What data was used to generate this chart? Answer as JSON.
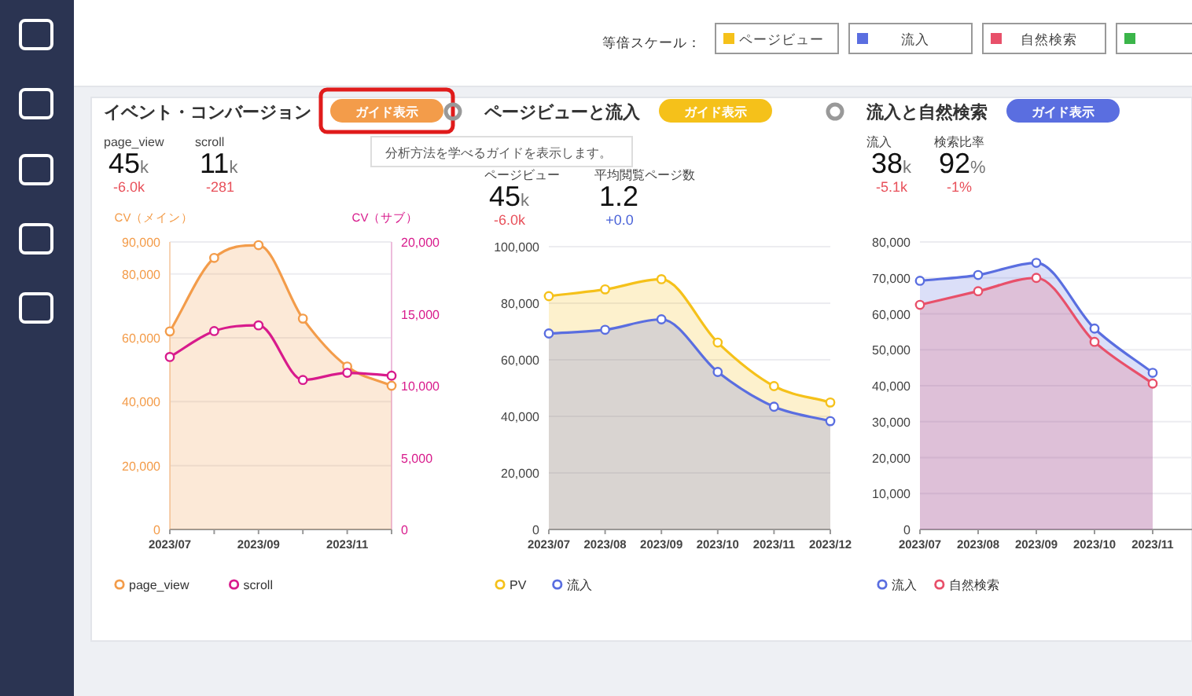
{
  "chart_data": [
    {
      "type": "area",
      "title": "イベント・コンバージョン",
      "ylabel": "CV（メイン）",
      "y2label": "CV（サブ）",
      "annotations": [
        "ガイド表示",
        "page_view",
        "45k",
        "-6.0k",
        "scroll",
        "11k",
        "-281"
      ],
      "categories": [
        "2023/07",
        null,
        "2023/09",
        null,
        "2023/11",
        null
      ],
      "series": [
        {
          "name": "page_view",
          "color": "#f39c4a",
          "values": [
            62000,
            85000,
            89000,
            66000,
            51000,
            45000
          ]
        },
        {
          "name": "scroll",
          "type": "line",
          "axis": "y2",
          "color": "#d81b8c",
          "values": [
            12000,
            13800,
            14200,
            10400,
            10900,
            10700
          ]
        }
      ],
      "ylim": [
        0,
        90000
      ],
      "yticks": [
        {
          "value": 0,
          "label": "0"
        },
        {
          "value": 20000,
          "label": "20,000"
        },
        {
          "value": 40000,
          "label": "40,000"
        },
        {
          "value": 60000,
          "label": "60,000"
        },
        {
          "value": 80000,
          "label": "80,000"
        },
        {
          "value": 90000,
          "label": "90,000"
        }
      ],
      "y2lim": [
        0,
        20000
      ],
      "y2ticks": [
        {
          "value": 0,
          "label": "0"
        },
        {
          "value": 5000,
          "label": "5,000"
        },
        {
          "value": 10000,
          "label": "10,000"
        },
        {
          "value": 15000,
          "label": "15,000"
        },
        {
          "value": 20000,
          "label": "20,000"
        }
      ],
      "grid": "y",
      "legend": "bottom left",
      "marker": "circle"
    },
    {
      "type": "area",
      "title": "ページビューと流入",
      "annotations": [
        "ガイド表示",
        "ページビュー",
        "45k",
        "-6.0k",
        "平均閲覧ページ数",
        "1.2",
        "+0.0"
      ],
      "categories": [
        "2023/07",
        "2023/08",
        "2023/09",
        "2023/10",
        "2023/11",
        "2023/12"
      ],
      "series": [
        {
          "name": "PV",
          "color": "#f5c11a",
          "values": [
            82500,
            84900,
            88500,
            66100,
            50700,
            44900
          ]
        },
        {
          "name": "流入",
          "color": "#5a6ee0",
          "values": [
            69300,
            70600,
            74300,
            55700,
            43400,
            38300
          ]
        }
      ],
      "ylim": [
        0,
        100000
      ],
      "yticks": [
        {
          "value": 0,
          "label": "0"
        },
        {
          "value": 20000,
          "label": "20,000"
        },
        {
          "value": 40000,
          "label": "40,000"
        },
        {
          "value": 60000,
          "label": "60,000"
        },
        {
          "value": 80000,
          "label": "80,000"
        },
        {
          "value": 100000,
          "label": "100,000"
        }
      ],
      "grid": "y",
      "legend": "bottom left",
      "marker": "circle"
    },
    {
      "type": "area",
      "title": "流入と自然検索",
      "annotations": [
        "ガイド表示",
        "流入",
        "38k",
        "-5.1k",
        "検索比率",
        "92%",
        "-1%"
      ],
      "categories": [
        "2023/07",
        "2023/08",
        "2023/09",
        "2023/10",
        "2023/11"
      ],
      "series": [
        {
          "name": "流入",
          "color": "#5a6ee0",
          "values": [
            69200,
            70800,
            74200,
            55900,
            43600
          ]
        },
        {
          "name": "自然検索",
          "color": "#e8506a",
          "values": [
            62500,
            66300,
            70000,
            52200,
            40600
          ]
        }
      ],
      "ylim": [
        0,
        80000
      ],
      "yticks": [
        {
          "value": 0,
          "label": "0"
        },
        {
          "value": 10000,
          "label": "10,000"
        },
        {
          "value": 20000,
          "label": "20,000"
        },
        {
          "value": 30000,
          "label": "30,000"
        },
        {
          "value": 40000,
          "label": "40,000"
        },
        {
          "value": 50000,
          "label": "50,000"
        },
        {
          "value": 60000,
          "label": "60,000"
        },
        {
          "value": 70000,
          "label": "70,000"
        },
        {
          "value": 80000,
          "label": "80,000"
        }
      ],
      "grid": "y",
      "legend": "bottom left",
      "marker": "circle"
    },
    {
      "type": "other",
      "annotations": [
        "等倍スケール：",
        "ページビュー",
        "流入",
        "自然検索",
        "分析方法を学べるガイドを表示します。"
      ]
    }
  ]
}
